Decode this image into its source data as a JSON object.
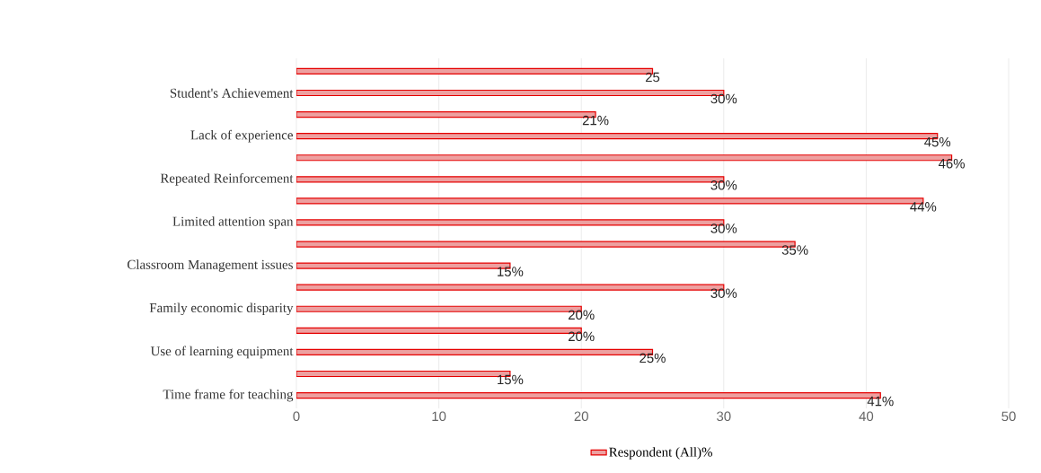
{
  "chart_data": {
    "type": "bar",
    "orientation": "horizontal",
    "categories": [
      null,
      "Student's Achievement",
      null,
      "Lack of experience",
      null,
      "Repeated Reinforcement",
      null,
      "Limited attention span",
      null,
      "Classroom Management issues",
      null,
      "Family economic disparity",
      null,
      "Use of learning equipment",
      null,
      "Time frame for teaching"
    ],
    "series": [
      {
        "name": "Respondent (All)%",
        "color": "#eda0a0",
        "values": [
          25,
          30,
          21,
          45,
          46,
          30,
          44,
          30,
          35,
          15,
          30,
          20,
          20,
          25,
          15,
          41
        ],
        "value_labels": [
          "25",
          "30%",
          "21%",
          "45%",
          "46%",
          "30%",
          "44%",
          "30%",
          "35%",
          "15%",
          "30%",
          "20%",
          "20%",
          "25%",
          "15%",
          "41%"
        ]
      }
    ],
    "xlim": [
      0,
      50
    ],
    "xticks": [
      0,
      10,
      20,
      30,
      40,
      50
    ],
    "grid": "x",
    "legend": "bottom"
  }
}
